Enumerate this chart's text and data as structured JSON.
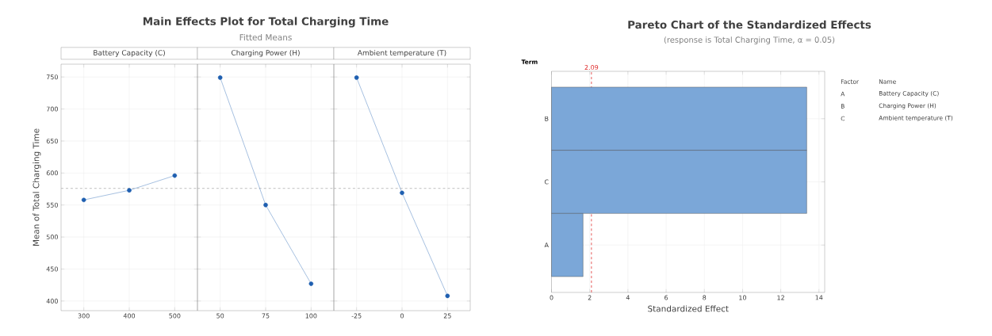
{
  "chart_data": [
    {
      "type": "other",
      "title": "Main Effects Plot for Total Charging Time",
      "subtitle": "Fitted Means"
    },
    {
      "type": "line",
      "title": "Battery Capacity (C)",
      "ylabel": "Mean of Total Charging Time",
      "x": [
        300,
        400,
        500
      ],
      "values": [
        558,
        573,
        596
      ],
      "color": "#1f5fb0",
      "marker": "circle",
      "xlim": [
        250,
        550
      ],
      "xticks": [
        300,
        400,
        500
      ],
      "ylim": [
        385,
        770
      ],
      "yticks": [
        400,
        450,
        500,
        550,
        600,
        650,
        700,
        750
      ],
      "grid": true,
      "ref_lines": [
        {
          "axis": "y",
          "value": 576,
          "color": "#b0b0b0",
          "line_style": "dashed"
        }
      ]
    },
    {
      "type": "line",
      "title": "Charging Power (H)",
      "x": [
        50,
        75,
        100
      ],
      "values": [
        749,
        550,
        427
      ],
      "color": "#1f5fb0",
      "marker": "circle",
      "xlim": [
        37.5,
        112.5
      ],
      "xticks": [
        50,
        75,
        100
      ],
      "ylim": [
        385,
        770
      ],
      "yticks": [
        400,
        450,
        500,
        550,
        600,
        650,
        700,
        750
      ],
      "grid": true,
      "tick_labels": "x",
      "ref_lines": [
        {
          "axis": "y",
          "value": 576,
          "color": "#b0b0b0",
          "line_style": "dashed"
        }
      ]
    },
    {
      "type": "line",
      "title": "Ambient temperature (T)",
      "x": [
        -25,
        0,
        25
      ],
      "values": [
        749,
        569,
        408
      ],
      "color": "#1f5fb0",
      "marker": "circle",
      "xlim": [
        -37.5,
        37.5
      ],
      "xticks": [
        -25,
        0,
        25
      ],
      "ylim": [
        385,
        770
      ],
      "yticks": [
        400,
        450,
        500,
        550,
        600,
        650,
        700,
        750
      ],
      "grid": true,
      "tick_labels": "x",
      "ref_lines": [
        {
          "axis": "y",
          "value": 576,
          "color": "#b0b0b0",
          "line_style": "dashed"
        }
      ]
    },
    {
      "type": "bar",
      "orientation": "horizontal",
      "title": "Pareto Chart of the Standardized Effects",
      "subtitle": "(response is Total Charging Time, α = 0.05)",
      "xlabel": "Standardized Effect",
      "ylabel": "Term",
      "categories": [
        "B",
        "C",
        "A"
      ],
      "values": [
        13.36,
        13.36,
        1.65
      ],
      "color": "#7ba7d8",
      "xlim": [
        0,
        14.3
      ],
      "xticks": [
        0,
        2,
        4,
        6,
        8,
        10,
        12,
        14
      ],
      "grid": true,
      "ref_lines": [
        {
          "axis": "x",
          "value": 2.09,
          "label": "2.09",
          "color": "#e03030",
          "line_style": "dashed"
        }
      ],
      "annotations": [
        "Factor",
        "Name",
        "A",
        "Battery Capacity (C)",
        "B",
        "Charging Power (H)",
        "C",
        "Ambient temperature (T)"
      ]
    }
  ]
}
